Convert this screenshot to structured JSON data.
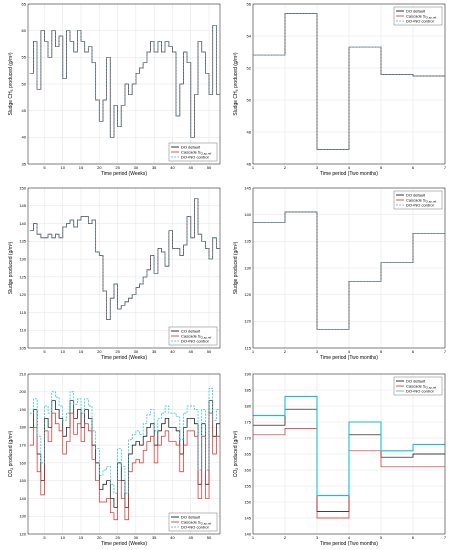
{
  "figure_title": "",
  "chart_data": [
    {
      "id": "a",
      "type": "line",
      "step": true,
      "xlabel": "Time period (Weeks)",
      "ylabel": "Sludge CH4 produced (g/m3)",
      "xlim": [
        0.5,
        53
      ],
      "ylim": [
        35,
        65
      ],
      "xticks": [
        5,
        10,
        15,
        20,
        25,
        30,
        35,
        40,
        45,
        50
      ],
      "yticks": [
        35,
        40,
        45,
        50,
        55,
        60,
        65
      ],
      "legend_position": "bottom-right",
      "grid": true,
      "series": [
        {
          "name": "DO default",
          "color": "#000000",
          "dash": "",
          "values": [
            52,
            58,
            49,
            60,
            58,
            55,
            60,
            57,
            59,
            51,
            60,
            58,
            56,
            60,
            58,
            56,
            57,
            54,
            47,
            43,
            47,
            55,
            40,
            46,
            42,
            46,
            50,
            48,
            50,
            52,
            53,
            54,
            56,
            58,
            56,
            58,
            56,
            58,
            57,
            56,
            44,
            50,
            56,
            54,
            40,
            48,
            58,
            56,
            52,
            48,
            61,
            48
          ]
        },
        {
          "name": "Cascade S_O,sp,ref",
          "color": "#d62728",
          "dash": "",
          "values": [
            52,
            58,
            49,
            60,
            58,
            55,
            60,
            57,
            59,
            51,
            60,
            58,
            56,
            60,
            58,
            56,
            57,
            54,
            47,
            43,
            47,
            55,
            40,
            46,
            42,
            46,
            50,
            48,
            50,
            52,
            53,
            54,
            56,
            58,
            56,
            58,
            56,
            58,
            57,
            56,
            44,
            50,
            56,
            54,
            40,
            48,
            58,
            56,
            52,
            48,
            61,
            48
          ]
        },
        {
          "name": "DO+NO control",
          "color": "#17becf",
          "dash": "2,1.2",
          "values": [
            52,
            58,
            49,
            60,
            58,
            55,
            60,
            57,
            59,
            51,
            60,
            58,
            56,
            60,
            58,
            56,
            57,
            54,
            47,
            43,
            47,
            55,
            40,
            46,
            42,
            46,
            50,
            48,
            50,
            52,
            53,
            54,
            56,
            58,
            56,
            58,
            56,
            58,
            57,
            56,
            44,
            50,
            56,
            54,
            40,
            48,
            58,
            56,
            52,
            48,
            61,
            48
          ]
        }
      ]
    },
    {
      "id": "b",
      "type": "line",
      "step": true,
      "xlabel": "Time period (Two months)",
      "ylabel": "Sludge CH4 produced (g/m3)",
      "xlim": [
        1,
        7
      ],
      "ylim": [
        46,
        56
      ],
      "xticks": [
        1,
        2,
        3,
        4,
        5,
        6,
        7
      ],
      "yticks": [
        46,
        48,
        50,
        52,
        54,
        56
      ],
      "legend_position": "top-right",
      "grid": true,
      "series": [
        {
          "name": "DO default",
          "color": "#000000",
          "dash": "",
          "values": [
            52.8,
            55.4,
            46.9,
            53.3,
            51.6,
            51.5
          ]
        },
        {
          "name": "Cascade S_O,sp,ref",
          "color": "#d62728",
          "dash": "",
          "values": [
            52.8,
            55.4,
            46.9,
            53.3,
            51.6,
            51.5
          ]
        },
        {
          "name": "DO+NO control",
          "color": "#17becf",
          "dash": "2,1.2",
          "values": [
            52.8,
            55.4,
            46.9,
            53.3,
            51.6,
            51.5
          ]
        }
      ]
    },
    {
      "id": "c",
      "type": "line",
      "step": true,
      "xlabel": "Time period (Weeks)",
      "ylabel": "Sludge produced (g/m3)",
      "xlim": [
        0.5,
        53
      ],
      "ylim": [
        105,
        150
      ],
      "xticks": [
        5,
        10,
        15,
        20,
        25,
        30,
        35,
        40,
        45,
        50
      ],
      "yticks": [
        105,
        110,
        115,
        120,
        125,
        130,
        135,
        140,
        145,
        150
      ],
      "legend_position": "bottom-right",
      "grid": true,
      "series": [
        {
          "name": "CO default",
          "color": "#000000",
          "dash": "",
          "values": [
            138,
            140,
            137,
            136,
            136,
            137,
            136,
            137,
            136,
            139,
            140,
            141,
            139,
            141,
            142,
            142,
            140,
            141,
            132,
            131,
            121,
            113,
            119,
            123,
            116,
            117,
            118,
            119,
            120,
            122,
            123,
            125,
            127,
            131,
            126,
            133,
            132,
            128,
            138,
            133,
            133,
            131,
            134,
            142,
            136,
            147,
            137,
            135,
            133,
            130,
            136,
            133
          ]
        },
        {
          "name": "Cascade S_O,sp,ref",
          "color": "#d62728",
          "dash": "",
          "values": [
            138,
            140,
            137,
            136,
            136,
            137,
            136,
            137,
            136,
            139,
            140,
            141,
            139,
            141,
            142,
            142,
            140,
            141,
            132,
            131,
            121,
            113,
            119,
            123,
            116,
            117,
            118,
            119,
            120,
            122,
            123,
            125,
            127,
            131,
            126,
            133,
            132,
            128,
            138,
            133,
            133,
            131,
            134,
            142,
            136,
            147,
            137,
            135,
            133,
            130,
            136,
            133
          ]
        },
        {
          "name": "DO+NO control",
          "color": "#17becf",
          "dash": "2,1.2",
          "values": [
            138,
            140,
            137,
            136,
            136,
            137,
            136,
            137,
            136,
            139,
            140,
            141,
            139,
            141,
            142,
            142,
            140,
            141,
            132,
            131,
            121,
            113,
            119,
            123,
            116,
            117,
            118,
            119,
            120,
            122,
            123,
            125,
            127,
            131,
            126,
            133,
            132,
            128,
            138,
            133,
            133,
            131,
            134,
            142,
            136,
            147,
            137,
            135,
            133,
            130,
            136,
            133
          ]
        }
      ]
    },
    {
      "id": "d",
      "type": "line",
      "step": true,
      "xlabel": "Time period (Two months)",
      "ylabel": "Sludge produced (g/m3)",
      "xlim": [
        1,
        7
      ],
      "ylim": [
        115,
        145
      ],
      "xticks": [
        1,
        2,
        3,
        4,
        5,
        6,
        7
      ],
      "yticks": [
        115,
        120,
        125,
        130,
        135,
        140,
        145
      ],
      "legend_position": "top-right",
      "grid": true,
      "series": [
        {
          "name": "DO default",
          "color": "#000000",
          "dash": "",
          "values": [
            138.5,
            140.5,
            118.5,
            127.5,
            131,
            136.5
          ]
        },
        {
          "name": "Cascade S_O,sp,ref",
          "color": "#d62728",
          "dash": "",
          "values": [
            138.5,
            140.5,
            118.5,
            127.5,
            131,
            136.5
          ]
        },
        {
          "name": "DO+NO control",
          "color": "#17becf",
          "dash": "2,1.2",
          "values": [
            138.5,
            140.5,
            118.5,
            127.5,
            131,
            136.5
          ]
        }
      ]
    },
    {
      "id": "e",
      "type": "line",
      "step": true,
      "xlabel": "Time period (Weeks)",
      "ylabel": "CO2 produced (g/m3)",
      "xlim": [
        0.5,
        53
      ],
      "ylim": [
        120,
        210
      ],
      "xticks": [
        5,
        10,
        15,
        20,
        25,
        30,
        35,
        40,
        45,
        50
      ],
      "yticks": [
        120,
        130,
        140,
        150,
        160,
        170,
        180,
        190,
        200,
        210
      ],
      "legend_position": "bottom-right",
      "grid": true,
      "series": [
        {
          "name": "DO default",
          "color": "#000000",
          "dash": "",
          "values": [
            180,
            190,
            165,
            150,
            185,
            180,
            195,
            190,
            185,
            175,
            180,
            195,
            185,
            190,
            180,
            190,
            185,
            170,
            160,
            145,
            148,
            150,
            140,
            135,
            160,
            150,
            135,
            165,
            170,
            172,
            170,
            175,
            180,
            182,
            170,
            178,
            182,
            185,
            180,
            180,
            178,
            165,
            180,
            185,
            185,
            182,
            148,
            182,
            148,
            195,
            175,
            182
          ]
        },
        {
          "name": "Cascade S_O,sp,ref",
          "color": "#d62728",
          "dash": "",
          "values": [
            170,
            180,
            155,
            142,
            178,
            172,
            188,
            182,
            178,
            165,
            172,
            188,
            176,
            182,
            172,
            182,
            178,
            162,
            150,
            138,
            138,
            140,
            132,
            128,
            150,
            140,
            128,
            155,
            160,
            162,
            160,
            167,
            172,
            175,
            160,
            170,
            175,
            178,
            172,
            172,
            170,
            155,
            170,
            178,
            178,
            175,
            140,
            175,
            140,
            188,
            165,
            175
          ]
        },
        {
          "name": "DO+NO control",
          "color": "#17becf",
          "dash": "2,1.2",
          "values": [
            188,
            196,
            175,
            160,
            192,
            188,
            200,
            197,
            192,
            184,
            188,
            200,
            193,
            196,
            188,
            196,
            192,
            178,
            168,
            153,
            156,
            158,
            148,
            143,
            168,
            158,
            143,
            173,
            176,
            178,
            176,
            182,
            187,
            190,
            178,
            185,
            188,
            192,
            188,
            188,
            186,
            173,
            188,
            192,
            192,
            190,
            156,
            190,
            156,
            202,
            184,
            190
          ]
        }
      ]
    },
    {
      "id": "f",
      "type": "line",
      "step": true,
      "xlabel": "Time period (Two months)",
      "ylabel": "CO2 produced (g/m3)",
      "xlim": [
        1,
        7
      ],
      "ylim": [
        140,
        190
      ],
      "xticks": [
        1,
        2,
        3,
        4,
        5,
        6,
        7
      ],
      "yticks": [
        140,
        145,
        150,
        155,
        160,
        165,
        170,
        175,
        180,
        185,
        190
      ],
      "legend_position": "top-right",
      "grid": true,
      "series": [
        {
          "name": "DO default",
          "color": "#000000",
          "dash": "",
          "values": [
            174,
            179,
            147,
            171,
            164,
            165
          ]
        },
        {
          "name": "Cascade S_O,sp,ref",
          "color": "#d62728",
          "dash": "",
          "values": [
            171,
            173,
            145,
            166,
            161,
            161
          ]
        },
        {
          "name": "DO+NO control",
          "color": "#17becf",
          "dash": "",
          "values": [
            177,
            183,
            152,
            175,
            166,
            168
          ]
        }
      ]
    }
  ],
  "panels": [
    {
      "ylab_main": "Sludge CH",
      "ylab_sub": "4",
      "ylab_tail": " produced (g/m³)",
      "xlabel": "Time period (Weeks)",
      "legend": [
        "DO default",
        "Cascade S",
        "DO+NO control"
      ],
      "legend_sub": "O,sp,ref"
    },
    {
      "ylab_main": "Sludge CH",
      "ylab_sub": "4",
      "ylab_tail": " produced (g/m³)",
      "xlabel": "Time period (Two months)",
      "legend": [
        "DO default",
        "Cascade S",
        "DO+NO control"
      ],
      "legend_sub": "O,sp,ref"
    },
    {
      "ylab_main": "Sludge ",
      "ylab_sub": "",
      "ylab_tail": "produced (g/m³)",
      "xlabel": "Time period (Weeks)",
      "legend": [
        "CO default",
        "Cascade S",
        "DO+NO control"
      ],
      "legend_sub": "O,sp,ref"
    },
    {
      "ylab_main": "Sludge ",
      "ylab_sub": "",
      "ylab_tail": "produced (g/m³)",
      "xlabel": "Time period (Two months)",
      "legend": [
        "DO default",
        "Cascade S",
        "DO+NO control"
      ],
      "legend_sub": "O,sp,ref"
    },
    {
      "ylab_main": "CO",
      "ylab_sub": "2",
      "ylab_tail": " produced (g/m³)",
      "xlabel": "Time period (Weeks)",
      "legend": [
        "DO default",
        "Cascade S",
        "DO+NO control"
      ],
      "legend_sub": "O,sp,ref"
    },
    {
      "ylab_main": "CO",
      "ylab_sub": "2",
      "ylab_tail": " produced (g/m³)",
      "xlabel": "Time period (Two months)",
      "legend": [
        "DO default",
        "Cascade S",
        "DO+NO control"
      ],
      "legend_sub": "O,sp,ref"
    }
  ]
}
